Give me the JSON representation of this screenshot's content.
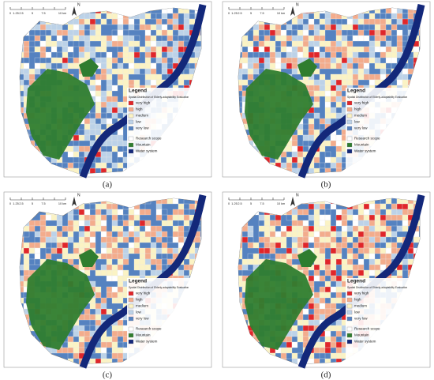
{
  "scale_bar": {
    "labels": [
      "0",
      "1.25",
      "2.5",
      "5",
      "7.5",
      "10 km"
    ]
  },
  "north": "N",
  "legend": {
    "title": "Legend",
    "subtitle": "Spatial Distribution of Elderly-adaptability Evaluation",
    "classes": [
      {
        "label": "very high",
        "color": "#e0262a"
      },
      {
        "label": "high",
        "color": "#f3ac8c"
      },
      {
        "label": "medium",
        "color": "#fbf3c4"
      },
      {
        "label": "low",
        "color": "#bcd2e8"
      },
      {
        "label": "very low",
        "color": "#5582c0"
      }
    ],
    "features": [
      {
        "label": "Research scope",
        "color": "#ffffff"
      },
      {
        "label": "Mountain",
        "color": "#2f7d2f"
      },
      {
        "label": "Water system",
        "color": "#13287a"
      }
    ]
  },
  "panels": [
    {
      "label": "(a)"
    },
    {
      "label": "(b)"
    },
    {
      "label": "(c)"
    },
    {
      "label": "(d)"
    }
  ]
}
